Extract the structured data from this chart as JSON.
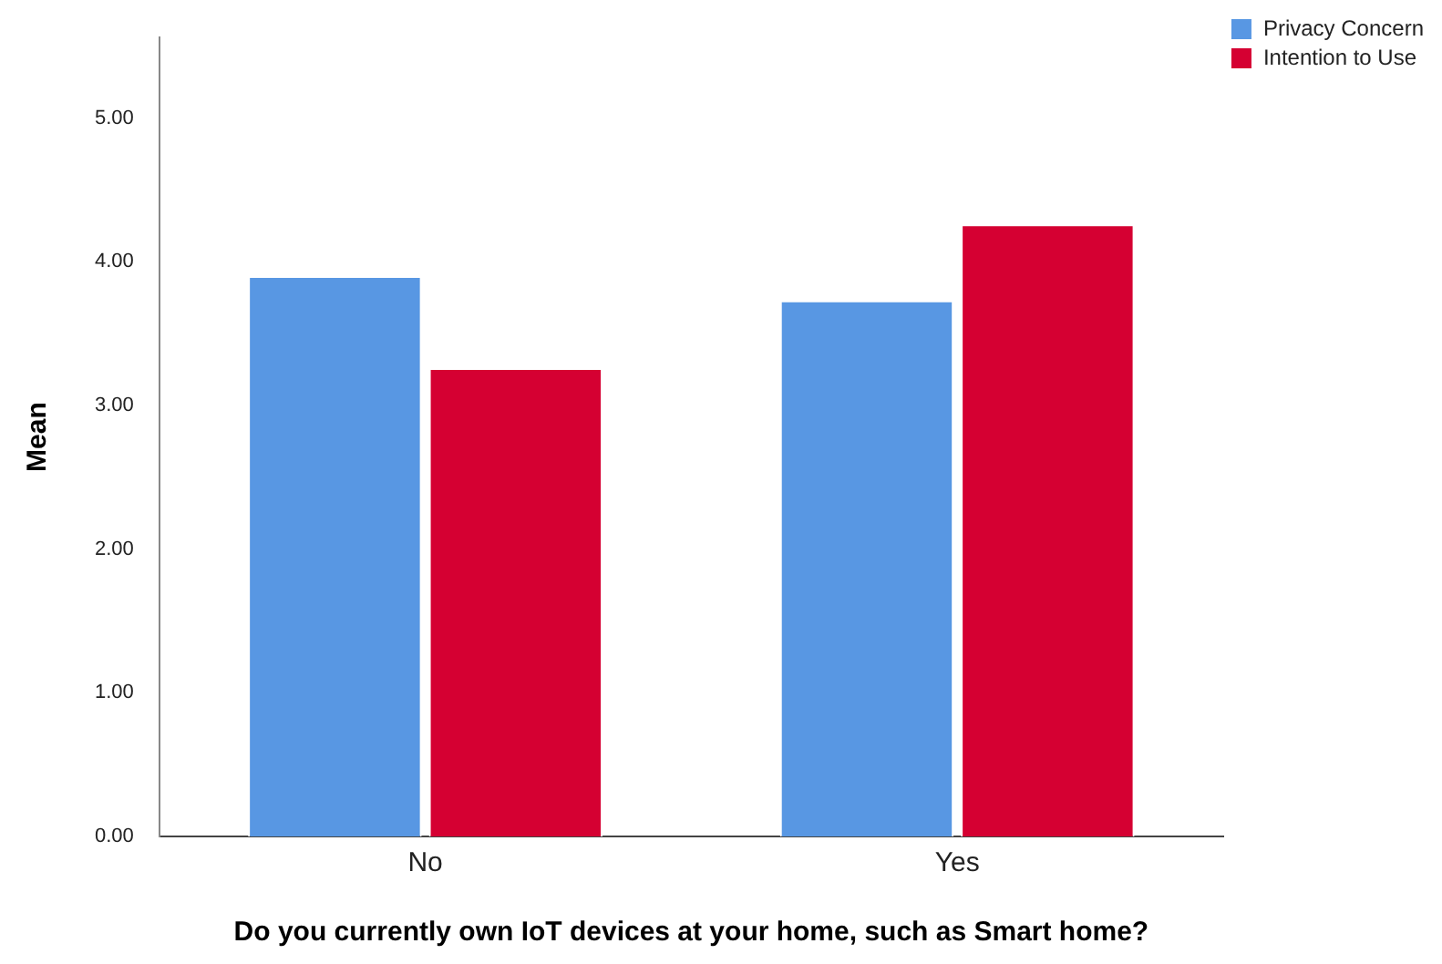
{
  "chart_data": {
    "type": "bar",
    "xlabel": "Do you currently own IoT devices at your home, such as Smart home?",
    "ylabel": "Mean",
    "categories": [
      "No",
      "Yes"
    ],
    "series": [
      {
        "name": "Privacy Concern",
        "color": "#5897e3",
        "values": [
          3.9,
          3.73
        ]
      },
      {
        "name": "Intention to Use",
        "color": "#d50032",
        "values": [
          3.26,
          4.26
        ]
      }
    ],
    "ylim": [
      0,
      5.56
    ],
    "yticks": [
      {
        "value": 0,
        "label": "0.00"
      },
      {
        "value": 1,
        "label": "1.00"
      },
      {
        "value": 2,
        "label": "2.00"
      },
      {
        "value": 3,
        "label": "3.00"
      },
      {
        "value": 4,
        "label": "4.00"
      },
      {
        "value": 5,
        "label": "5.00"
      }
    ],
    "grid": false,
    "legend": "top right"
  }
}
